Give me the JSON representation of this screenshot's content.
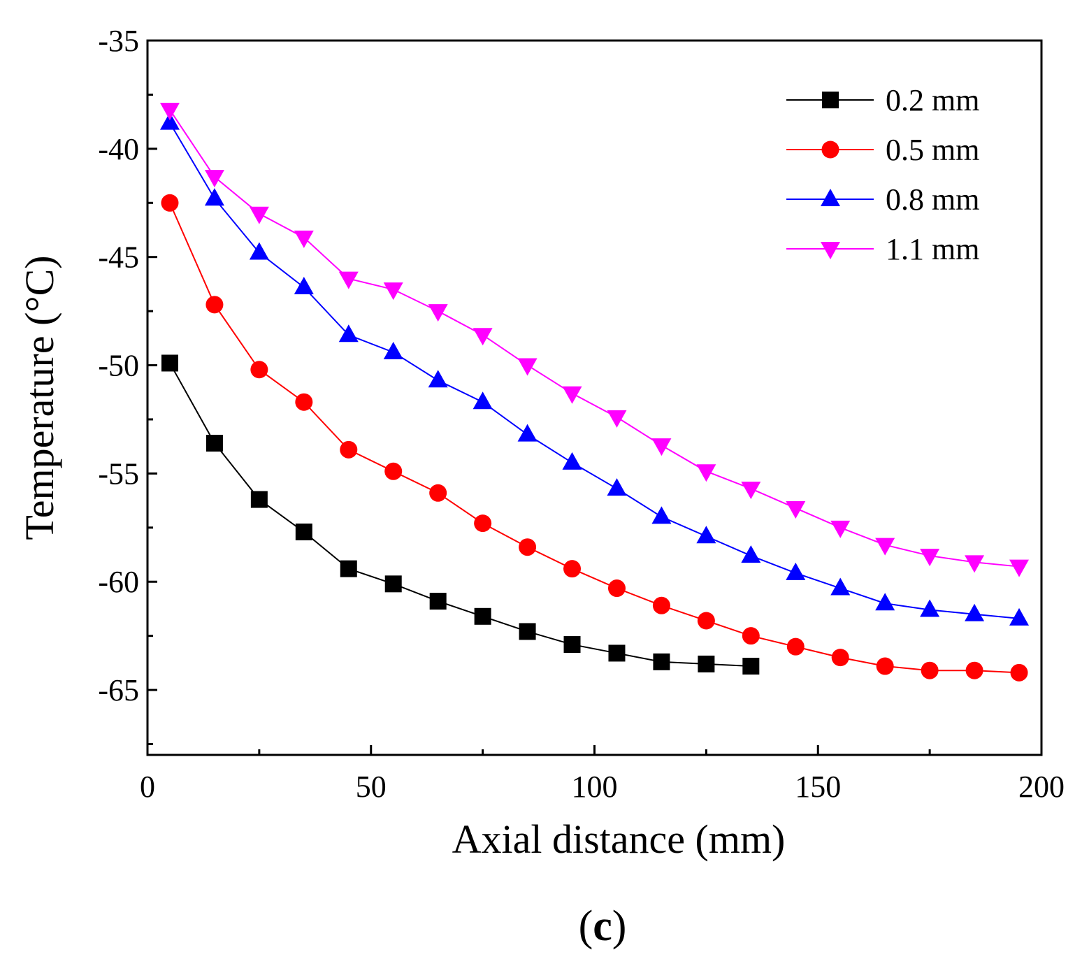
{
  "chart_data": {
    "type": "line",
    "title": "",
    "xlabel": "Axial distance (mm)",
    "ylabel": "Temperature (°C)",
    "panel_label": {
      "open": "(",
      "letter": "c",
      "close": ")"
    },
    "xlim": [
      0,
      200
    ],
    "ylim": [
      -68,
      -35
    ],
    "xticks": [
      0,
      50,
      100,
      150,
      200
    ],
    "yticks": [
      -35,
      -40,
      -45,
      -50,
      -55,
      -60,
      -65
    ],
    "grid": false,
    "legend_position": "top-right",
    "series": [
      {
        "name": "0.2 mm",
        "color": "#000000",
        "marker": "square",
        "x": [
          5,
          15,
          25,
          35,
          45,
          55,
          65,
          75,
          85,
          95,
          105,
          115,
          125,
          135
        ],
        "y": [
          -49.9,
          -53.6,
          -56.2,
          -57.7,
          -59.4,
          -60.1,
          -60.9,
          -61.6,
          -62.3,
          -62.9,
          -63.3,
          -63.7,
          -63.8,
          -63.9
        ]
      },
      {
        "name": "0.5 mm",
        "color": "#ff0000",
        "marker": "circle",
        "x": [
          5,
          15,
          25,
          35,
          45,
          55,
          65,
          75,
          85,
          95,
          105,
          115,
          125,
          135,
          145,
          155,
          165,
          175,
          185,
          195
        ],
        "y": [
          -42.5,
          -47.2,
          -50.2,
          -51.7,
          -53.9,
          -54.9,
          -55.9,
          -57.3,
          -58.4,
          -59.4,
          -60.3,
          -61.1,
          -61.8,
          -62.5,
          -63.0,
          -63.5,
          -63.9,
          -64.1,
          -64.1,
          -64.2
        ]
      },
      {
        "name": "0.8 mm",
        "color": "#0000ff",
        "marker": "triangle-up",
        "x": [
          5,
          15,
          25,
          35,
          45,
          55,
          65,
          75,
          85,
          95,
          105,
          115,
          125,
          135,
          145,
          155,
          165,
          175,
          185,
          195
        ],
        "y": [
          -38.8,
          -42.3,
          -44.8,
          -46.4,
          -48.6,
          -49.4,
          -50.7,
          -51.7,
          -53.2,
          -54.5,
          -55.7,
          -57.0,
          -57.9,
          -58.8,
          -59.6,
          -60.3,
          -61.0,
          -61.3,
          -61.5,
          -61.7
        ]
      },
      {
        "name": "1.1 mm",
        "color": "#ff00ff",
        "marker": "triangle-down",
        "x": [
          5,
          15,
          25,
          35,
          45,
          55,
          65,
          75,
          85,
          95,
          105,
          115,
          125,
          135,
          145,
          155,
          165,
          175,
          185,
          195
        ],
        "y": [
          -38.2,
          -41.3,
          -43.0,
          -44.1,
          -46.0,
          -46.5,
          -47.5,
          -48.6,
          -50.0,
          -51.3,
          -52.4,
          -53.7,
          -54.9,
          -55.7,
          -56.6,
          -57.5,
          -58.3,
          -58.8,
          -59.1,
          -59.3
        ]
      }
    ]
  }
}
